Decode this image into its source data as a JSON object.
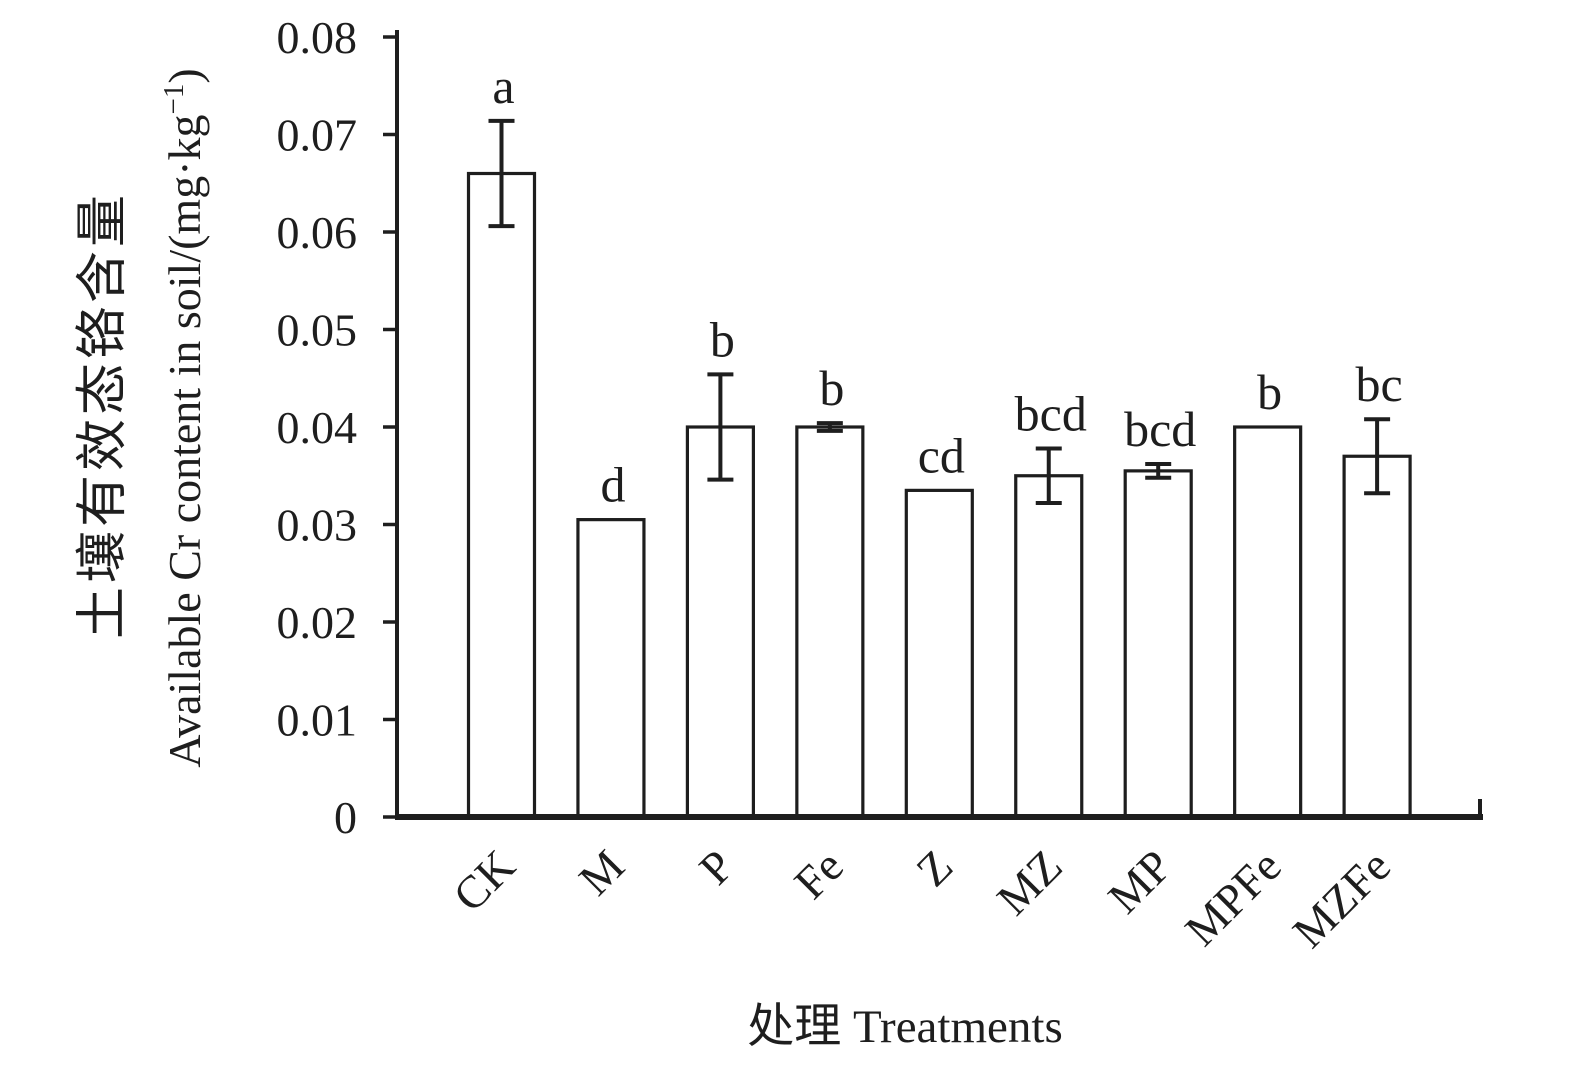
{
  "figure": {
    "background": "#ffffff",
    "ink_color": "#1e1e1e"
  },
  "chart_data": {
    "type": "bar",
    "title": "",
    "categories": [
      "CK",
      "M",
      "P",
      "Fe",
      "Z",
      "MZ",
      "MP",
      "MPFe",
      "MZFe"
    ],
    "values": [
      0.066,
      0.0305,
      0.04,
      0.04,
      0.0335,
      0.035,
      0.0355,
      0.04,
      0.037
    ],
    "errors": [
      0.0054,
      0,
      0.0054,
      0.0004,
      0,
      0.0028,
      0.0007,
      0,
      0.0038
    ],
    "sig_letters": [
      "a",
      "d",
      "b",
      "b",
      "cd",
      "bcd",
      "bcd",
      "b",
      "bc"
    ],
    "ytick_labels": [
      "0",
      "0.01",
      "0.02",
      "0.03",
      "0.04",
      "0.05",
      "0.06",
      "0.07",
      "0.08"
    ],
    "ylim": [
      0,
      0.08
    ],
    "ytick_step": 0.01,
    "xlabel": "处理 Treatments",
    "ylabel_zh": "土壤有效态铬含量",
    "ylabel_en_pre": "Available Cr content in soil/(mg·kg",
    "ylabel_en_sup": "−1",
    "ylabel_en_post": ")",
    "bar_fill": "#ffffff",
    "stroke": "#1e1e1e",
    "grid": false,
    "error_caps": true
  }
}
